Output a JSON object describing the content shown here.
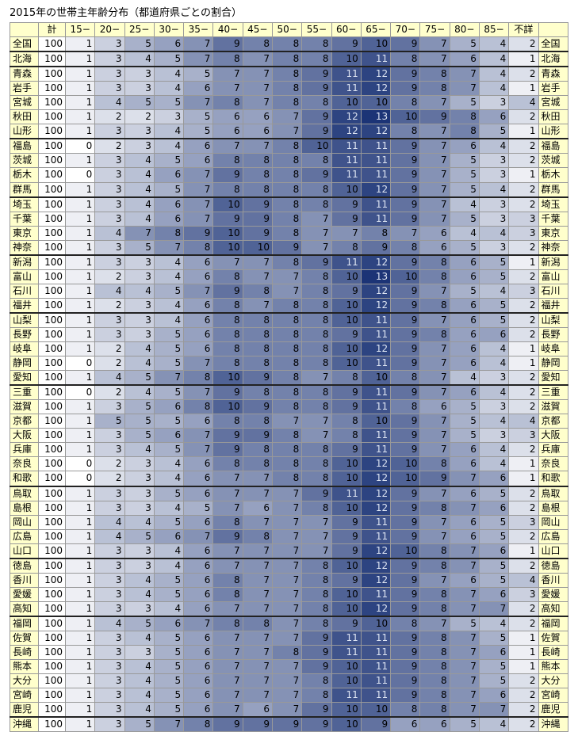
{
  "title": "2015年の世帯主年齢分布（都道府県ごとの割合）",
  "table": {
    "columns": [
      "計",
      "15−",
      "20−",
      "25−",
      "30−",
      "35−",
      "40−",
      "45−",
      "50−",
      "55−",
      "60−",
      "65−",
      "70−",
      "75−",
      "80−",
      "85−",
      "不詳"
    ],
    "rows": [
      {
        "label": "全国",
        "values": [
          100,
          1,
          3,
          5,
          6,
          7,
          9,
          8,
          8,
          8,
          9,
          10,
          9,
          7,
          5,
          4,
          2
        ]
      },
      {
        "label": "北海",
        "values": [
          100,
          1,
          3,
          4,
          5,
          7,
          8,
          7,
          8,
          8,
          10,
          11,
          8,
          7,
          6,
          4,
          1
        ]
      },
      {
        "label": "青森",
        "values": [
          100,
          1,
          3,
          3,
          4,
          5,
          7,
          7,
          8,
          9,
          11,
          12,
          9,
          8,
          7,
          4,
          2
        ]
      },
      {
        "label": "岩手",
        "values": [
          100,
          1,
          3,
          3,
          4,
          6,
          7,
          7,
          8,
          9,
          11,
          12,
          9,
          8,
          7,
          4,
          1
        ]
      },
      {
        "label": "宮城",
        "values": [
          100,
          1,
          4,
          5,
          5,
          7,
          8,
          7,
          8,
          8,
          10,
          10,
          8,
          7,
          5,
          3,
          4
        ]
      },
      {
        "label": "秋田",
        "values": [
          100,
          1,
          2,
          2,
          3,
          5,
          6,
          6,
          7,
          9,
          12,
          13,
          10,
          9,
          8,
          6,
          2
        ]
      },
      {
        "label": "山形",
        "values": [
          100,
          1,
          3,
          3,
          4,
          5,
          6,
          6,
          7,
          9,
          12,
          12,
          8,
          7,
          8,
          5,
          1
        ]
      },
      {
        "label": "福島",
        "values": [
          100,
          0,
          2,
          3,
          4,
          6,
          7,
          7,
          8,
          10,
          11,
          11,
          9,
          7,
          6,
          4,
          2
        ]
      },
      {
        "label": "茨城",
        "values": [
          100,
          1,
          3,
          4,
          5,
          6,
          8,
          8,
          8,
          8,
          11,
          11,
          9,
          7,
          5,
          3,
          2
        ]
      },
      {
        "label": "栃木",
        "values": [
          100,
          0,
          3,
          4,
          6,
          7,
          9,
          8,
          8,
          9,
          11,
          11,
          9,
          7,
          5,
          3,
          1
        ]
      },
      {
        "label": "群馬",
        "values": [
          100,
          1,
          3,
          4,
          5,
          7,
          8,
          8,
          8,
          8,
          10,
          12,
          9,
          7,
          5,
          4,
          2
        ]
      },
      {
        "label": "埼玉",
        "values": [
          100,
          1,
          3,
          4,
          6,
          7,
          10,
          9,
          8,
          8,
          9,
          11,
          9,
          7,
          4,
          3,
          2
        ]
      },
      {
        "label": "千葉",
        "values": [
          100,
          1,
          3,
          4,
          6,
          7,
          9,
          9,
          8,
          7,
          9,
          11,
          9,
          7,
          5,
          3,
          3
        ]
      },
      {
        "label": "東京",
        "values": [
          100,
          1,
          4,
          7,
          8,
          9,
          10,
          9,
          8,
          7,
          7,
          8,
          7,
          6,
          4,
          4,
          3
        ]
      },
      {
        "label": "神奈",
        "values": [
          100,
          1,
          3,
          5,
          7,
          8,
          10,
          10,
          9,
          7,
          8,
          9,
          8,
          6,
          5,
          3,
          2
        ]
      },
      {
        "label": "新潟",
        "values": [
          100,
          1,
          3,
          3,
          4,
          6,
          7,
          7,
          8,
          9,
          11,
          12,
          9,
          8,
          6,
          5,
          1
        ]
      },
      {
        "label": "富山",
        "values": [
          100,
          1,
          2,
          3,
          4,
          6,
          8,
          7,
          7,
          8,
          10,
          13,
          10,
          8,
          6,
          5,
          2
        ]
      },
      {
        "label": "石川",
        "values": [
          100,
          1,
          4,
          4,
          5,
          7,
          9,
          8,
          7,
          8,
          9,
          12,
          9,
          7,
          5,
          4,
          3
        ]
      },
      {
        "label": "福井",
        "values": [
          100,
          1,
          2,
          3,
          4,
          6,
          8,
          7,
          8,
          8,
          10,
          12,
          9,
          8,
          6,
          5,
          2
        ]
      },
      {
        "label": "山梨",
        "values": [
          100,
          1,
          3,
          3,
          4,
          6,
          8,
          8,
          8,
          8,
          10,
          11,
          9,
          7,
          6,
          5,
          2
        ]
      },
      {
        "label": "長野",
        "values": [
          100,
          1,
          3,
          3,
          5,
          6,
          8,
          8,
          8,
          8,
          9,
          11,
          9,
          8,
          6,
          6,
          2
        ]
      },
      {
        "label": "岐阜",
        "values": [
          100,
          1,
          2,
          4,
          5,
          6,
          8,
          8,
          8,
          8,
          10,
          12,
          9,
          7,
          6,
          4,
          1
        ]
      },
      {
        "label": "静岡",
        "values": [
          100,
          0,
          2,
          4,
          5,
          7,
          8,
          8,
          8,
          8,
          10,
          11,
          9,
          7,
          6,
          4,
          1
        ]
      },
      {
        "label": "愛知",
        "values": [
          100,
          1,
          4,
          5,
          7,
          8,
          10,
          9,
          8,
          7,
          8,
          10,
          8,
          7,
          4,
          3,
          2
        ]
      },
      {
        "label": "三重",
        "values": [
          100,
          0,
          2,
          4,
          5,
          7,
          9,
          8,
          8,
          8,
          9,
          11,
          9,
          7,
          6,
          4,
          2
        ]
      },
      {
        "label": "滋賀",
        "values": [
          100,
          1,
          3,
          5,
          6,
          8,
          10,
          9,
          8,
          8,
          9,
          11,
          8,
          6,
          5,
          3,
          2
        ]
      },
      {
        "label": "京都",
        "values": [
          100,
          1,
          5,
          5,
          5,
          6,
          8,
          8,
          7,
          7,
          8,
          10,
          9,
          7,
          5,
          4,
          4
        ]
      },
      {
        "label": "大阪",
        "values": [
          100,
          1,
          3,
          5,
          6,
          7,
          9,
          9,
          8,
          7,
          8,
          11,
          9,
          7,
          5,
          3,
          3
        ]
      },
      {
        "label": "兵庫",
        "values": [
          100,
          1,
          3,
          4,
          5,
          7,
          9,
          8,
          8,
          8,
          9,
          11,
          9,
          7,
          6,
          4,
          2
        ]
      },
      {
        "label": "奈良",
        "values": [
          100,
          0,
          2,
          3,
          4,
          6,
          8,
          8,
          8,
          8,
          10,
          12,
          10,
          8,
          6,
          4,
          1
        ]
      },
      {
        "label": "和歌",
        "values": [
          100,
          0,
          2,
          3,
          4,
          6,
          7,
          7,
          8,
          8,
          10,
          12,
          10,
          9,
          7,
          6,
          1
        ]
      },
      {
        "label": "鳥取",
        "values": [
          100,
          1,
          3,
          3,
          5,
          6,
          7,
          7,
          7,
          9,
          11,
          12,
          9,
          7,
          6,
          5,
          2
        ]
      },
      {
        "label": "島根",
        "values": [
          100,
          1,
          3,
          3,
          4,
          5,
          7,
          6,
          7,
          8,
          10,
          12,
          9,
          8,
          7,
          6,
          2
        ]
      },
      {
        "label": "岡山",
        "values": [
          100,
          1,
          4,
          4,
          5,
          6,
          8,
          7,
          7,
          7,
          9,
          11,
          9,
          7,
          6,
          5,
          3
        ]
      },
      {
        "label": "広島",
        "values": [
          100,
          1,
          4,
          5,
          6,
          7,
          9,
          8,
          7,
          7,
          9,
          11,
          9,
          7,
          6,
          5,
          2
        ]
      },
      {
        "label": "山口",
        "values": [
          100,
          1,
          3,
          3,
          4,
          6,
          7,
          7,
          7,
          7,
          9,
          12,
          10,
          8,
          7,
          6,
          1
        ]
      },
      {
        "label": "徳島",
        "values": [
          100,
          1,
          3,
          3,
          4,
          6,
          7,
          7,
          7,
          8,
          10,
          12,
          9,
          8,
          7,
          5,
          2
        ]
      },
      {
        "label": "香川",
        "values": [
          100,
          1,
          3,
          4,
          5,
          6,
          8,
          7,
          7,
          8,
          9,
          12,
          9,
          7,
          6,
          5,
          4
        ]
      },
      {
        "label": "愛媛",
        "values": [
          100,
          1,
          3,
          4,
          5,
          6,
          8,
          7,
          7,
          8,
          10,
          11,
          9,
          8,
          7,
          6,
          3
        ]
      },
      {
        "label": "高知",
        "values": [
          100,
          1,
          3,
          3,
          4,
          6,
          7,
          7,
          7,
          8,
          10,
          12,
          9,
          8,
          7,
          7,
          2
        ]
      },
      {
        "label": "福岡",
        "values": [
          100,
          1,
          4,
          5,
          6,
          7,
          8,
          8,
          7,
          8,
          9,
          10,
          8,
          7,
          5,
          4,
          2
        ]
      },
      {
        "label": "佐賀",
        "values": [
          100,
          1,
          3,
          4,
          5,
          6,
          7,
          7,
          7,
          9,
          11,
          11,
          9,
          8,
          7,
          5,
          1
        ]
      },
      {
        "label": "長崎",
        "values": [
          100,
          1,
          3,
          3,
          5,
          6,
          7,
          7,
          8,
          9,
          11,
          11,
          9,
          8,
          7,
          6,
          1
        ]
      },
      {
        "label": "熊本",
        "values": [
          100,
          1,
          3,
          4,
          5,
          6,
          7,
          7,
          7,
          9,
          10,
          11,
          9,
          8,
          7,
          5,
          1
        ]
      },
      {
        "label": "大分",
        "values": [
          100,
          1,
          3,
          4,
          5,
          6,
          7,
          7,
          7,
          8,
          10,
          11,
          9,
          8,
          7,
          5,
          2
        ]
      },
      {
        "label": "宮崎",
        "values": [
          100,
          1,
          3,
          4,
          5,
          6,
          7,
          7,
          7,
          8,
          11,
          11,
          9,
          8,
          7,
          6,
          2
        ]
      },
      {
        "label": "鹿児",
        "values": [
          100,
          1,
          3,
          4,
          5,
          6,
          7,
          6,
          7,
          9,
          10,
          10,
          8,
          8,
          7,
          7,
          2
        ]
      },
      {
        "label": "沖縄",
        "values": [
          100,
          1,
          3,
          5,
          7,
          8,
          9,
          9,
          9,
          9,
          10,
          9,
          6,
          6,
          5,
          4,
          2
        ]
      }
    ]
  }
}
